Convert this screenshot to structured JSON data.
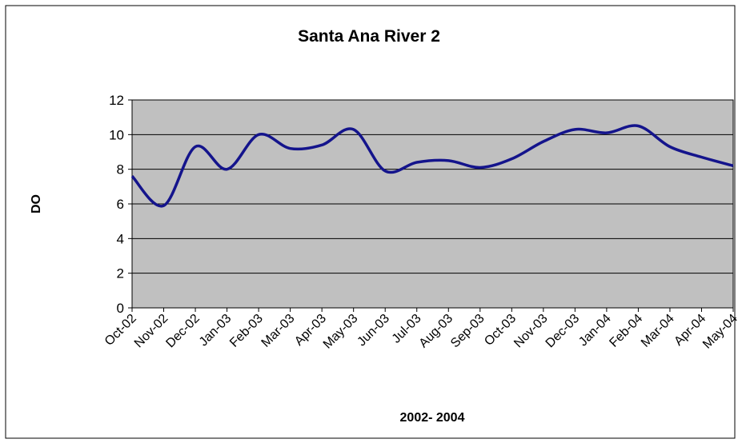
{
  "chart_data": {
    "type": "line",
    "title": "Santa Ana River 2",
    "x_label": "2002- 2004",
    "y_label": "DO",
    "categories": [
      "Oct-02",
      "Nov-02",
      "Dec-02",
      "Jan-03",
      "Feb-03",
      "Mar-03",
      "Apr-03",
      "May-03",
      "Jun-03",
      "Jul-03",
      "Aug-03",
      "Sep-03",
      "Oct-03",
      "Nov-03",
      "Dec-03",
      "Jan-04",
      "Feb-04",
      "Mar-04",
      "Apr-04",
      "May-04"
    ],
    "series": [
      {
        "name": "DO",
        "color": "#14148c",
        "values": [
          7.6,
          5.9,
          9.3,
          8.0,
          10.0,
          9.2,
          9.4,
          10.3,
          7.9,
          8.4,
          8.5,
          8.1,
          8.6,
          9.6,
          10.3,
          10.1,
          10.5,
          9.3,
          8.7,
          8.2
        ]
      }
    ],
    "ylim": [
      0,
      12
    ],
    "yticks": [
      0,
      2,
      4,
      6,
      8,
      10,
      12
    ],
    "grid": true,
    "plot_background": "#c0c0c0"
  }
}
